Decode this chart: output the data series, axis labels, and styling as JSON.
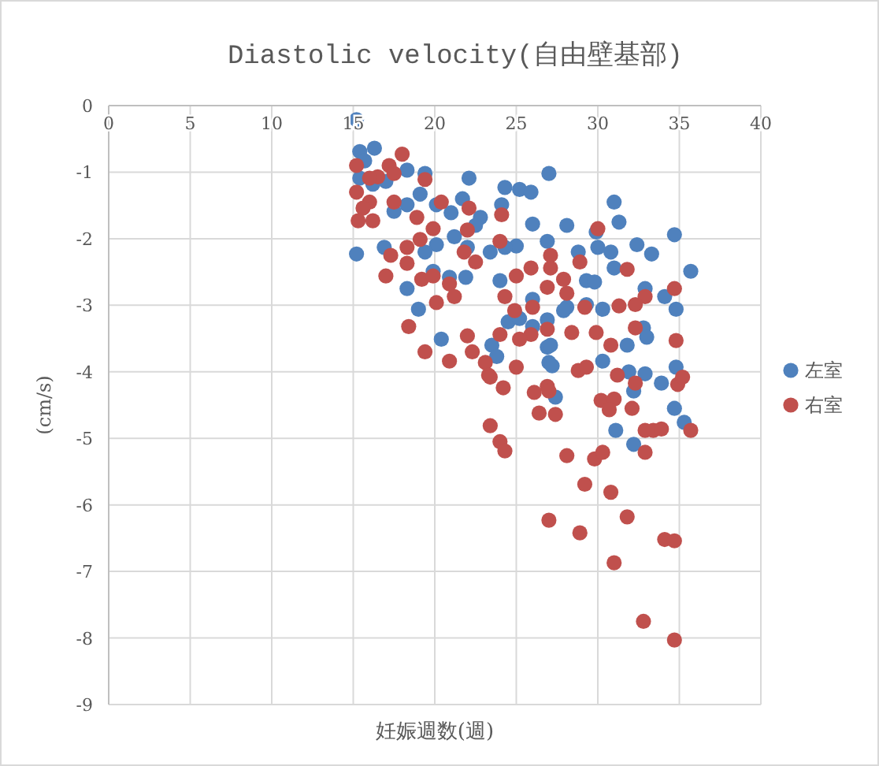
{
  "chart_data": {
    "type": "scatter",
    "title": "Diastolic velocity(自由壁基部)",
    "xlabel": "妊娠週数(週)",
    "ylabel": "(cm/s)",
    "xlim": [
      0,
      40
    ],
    "xticks": [
      0,
      5,
      10,
      15,
      20,
      25,
      30,
      35,
      40
    ],
    "ylim": [
      -9,
      0
    ],
    "yticks": [
      -9,
      -8,
      -7,
      -6,
      -5,
      -4,
      -3,
      -2,
      -1,
      0
    ],
    "grid": true,
    "legend": "right",
    "marker": "circle",
    "series": [
      {
        "name": "左室",
        "color": "#4f81bd",
        "x": [
          15.2,
          15.4,
          16.3,
          15.7,
          15.4,
          16.2,
          17.0,
          18.3,
          19.4,
          19.1,
          18.3,
          17.5,
          20.1,
          21.0,
          22.1,
          21.7,
          22.8,
          22.5,
          21.2,
          20.1,
          15.2,
          16.9,
          19.4,
          22.0,
          23.4,
          24.3,
          25.2,
          25.9,
          24.1,
          26.0,
          25.0,
          24.3,
          27.0,
          18.3,
          19.9,
          20.9,
          21.9,
          24.0,
          19.0,
          20.4,
          23.5,
          23.8,
          24.5,
          25.2,
          26.0,
          27.0,
          26.0,
          26.9,
          31.0,
          31.3,
          28.1,
          29.9,
          30.0,
          30.8,
          28.8,
          32.4,
          33.3,
          34.7,
          35.7,
          31.0,
          29.3,
          29.8,
          32.9,
          34.1,
          34.8,
          30.3,
          28.1,
          29.3,
          27.9,
          32.8,
          33.0,
          31.8,
          30.3,
          27.1,
          27.2,
          31.9,
          32.9,
          34.8,
          26.9,
          26.9,
          33.9,
          32.2,
          27.4,
          34.7,
          35.3,
          31.1,
          32.2
        ],
        "values": [
          -0.21,
          -0.69,
          -0.64,
          -0.83,
          -1.09,
          -1.18,
          -1.14,
          -0.97,
          -1.02,
          -1.33,
          -1.49,
          -1.59,
          -1.49,
          -1.61,
          -1.09,
          -1.4,
          -1.68,
          -1.8,
          -1.97,
          -2.09,
          -2.23,
          -2.13,
          -2.2,
          -2.13,
          -2.2,
          -1.23,
          -1.26,
          -1.3,
          -1.49,
          -1.78,
          -2.11,
          -2.13,
          -1.02,
          -2.75,
          -2.49,
          -2.58,
          -2.58,
          -2.63,
          -3.06,
          -3.51,
          -3.6,
          -3.77,
          -3.25,
          -3.2,
          -3.32,
          -3.86,
          -2.91,
          -3.63,
          -1.45,
          -1.75,
          -1.8,
          -1.9,
          -2.13,
          -2.2,
          -2.2,
          -2.09,
          -2.23,
          -1.94,
          -2.49,
          -2.44,
          -2.63,
          -2.65,
          -2.75,
          -2.87,
          -3.06,
          -3.06,
          -3.03,
          -2.99,
          -3.08,
          -3.34,
          -3.48,
          -3.6,
          -3.84,
          -3.6,
          -3.91,
          -4.0,
          -4.03,
          -3.93,
          -2.04,
          -3.22,
          -4.17,
          -4.29,
          -4.38,
          -4.55,
          -4.76,
          -4.88,
          -5.09
        ]
      },
      {
        "name": "右室",
        "color": "#c0504d",
        "x": [
          15.2,
          18.0,
          17.2,
          16.5,
          17.5,
          16.0,
          19.4,
          15.2,
          16.0,
          15.6,
          15.3,
          16.2,
          17.5,
          18.9,
          20.4,
          22.1,
          24.1,
          22.0,
          19.9,
          19.1,
          18.3,
          17.3,
          17.0,
          18.3,
          21.8,
          22.5,
          24.0,
          19.2,
          19.9,
          20.9,
          21.2,
          20.1,
          24.3,
          25.0,
          25.9,
          24.9,
          26.0,
          25.9,
          25.2,
          24.0,
          22.0,
          20.9,
          19.4,
          18.4,
          22.3,
          23.1,
          25.0,
          23.3,
          23.4,
          24.2,
          26.1,
          26.9,
          26.4,
          23.4,
          24.0,
          24.3,
          27.0,
          30.0,
          28.9,
          27.1,
          27.1,
          31.8,
          27.9,
          26.9,
          28.1,
          29.2,
          34.7,
          32.9,
          32.3,
          31.3,
          32.3,
          29.9,
          28.4,
          26.9,
          34.8,
          30.8,
          28.8,
          29.3,
          31.2,
          32.3,
          34.9,
          35.2,
          27.0,
          27.4,
          30.2,
          31.0,
          30.7,
          32.1,
          32.9,
          33.4,
          33.9,
          35.7,
          32.9,
          28.1,
          29.8,
          30.3,
          29.2,
          30.8,
          28.9,
          31.8,
          34.1,
          34.7,
          31.0,
          32.8,
          34.7
        ],
        "values": [
          -0.9,
          -0.73,
          -0.9,
          -1.07,
          -1.02,
          -1.09,
          -1.11,
          -1.3,
          -1.45,
          -1.54,
          -1.73,
          -1.73,
          -1.45,
          -1.68,
          -1.45,
          -1.54,
          -1.64,
          -1.87,
          -1.85,
          -2.01,
          -2.13,
          -2.25,
          -2.56,
          -2.37,
          -2.2,
          -2.35,
          -2.04,
          -2.61,
          -2.56,
          -2.68,
          -2.87,
          -2.96,
          -2.87,
          -2.56,
          -2.44,
          -3.08,
          -3.03,
          -3.44,
          -3.51,
          -3.44,
          -3.46,
          -3.84,
          -3.7,
          -3.32,
          -3.7,
          -3.86,
          -3.93,
          -4.05,
          -4.08,
          -4.24,
          -4.31,
          -4.22,
          -4.62,
          -4.81,
          -5.05,
          -5.19,
          -6.23,
          -1.85,
          -2.35,
          -2.25,
          -2.44,
          -2.46,
          -2.61,
          -2.73,
          -2.82,
          -3.03,
          -2.75,
          -2.87,
          -2.99,
          -3.01,
          -3.34,
          -3.41,
          -3.41,
          -3.36,
          -3.53,
          -3.6,
          -3.98,
          -3.93,
          -4.05,
          -4.17,
          -4.19,
          -4.08,
          -4.29,
          -4.64,
          -4.43,
          -4.41,
          -4.57,
          -4.55,
          -4.88,
          -4.88,
          -4.86,
          -4.88,
          -5.21,
          -5.26,
          -5.31,
          -5.21,
          -5.69,
          -5.81,
          -6.42,
          -6.18,
          -6.52,
          -6.54,
          -6.87,
          -7.75,
          -8.03
        ]
      }
    ]
  }
}
